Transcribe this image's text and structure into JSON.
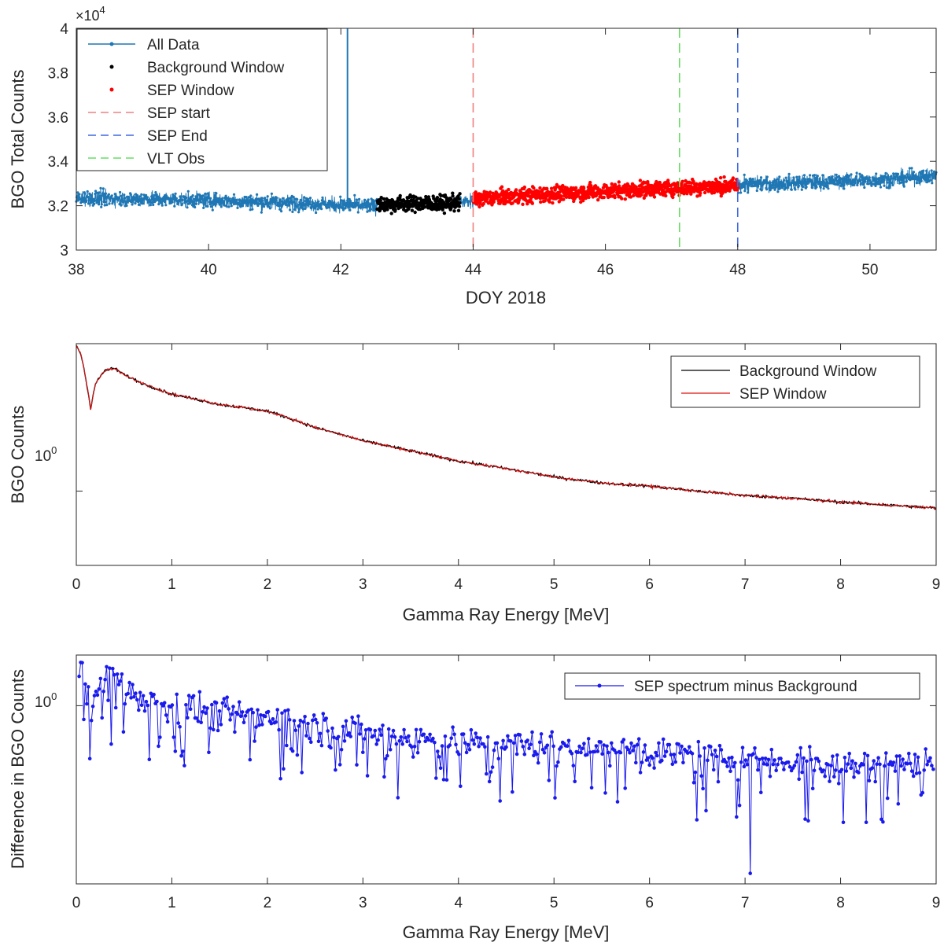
{
  "chart_data": [
    {
      "type": "scatter",
      "xlabel": "DOY 2018",
      "ylabel": "BGO Total Counts",
      "y_exponent_label": "×10",
      "y_exponent": "4",
      "xlim": [
        38,
        51
      ],
      "ylim": [
        30000,
        40000
      ],
      "x_ticks": [
        38,
        40,
        42,
        44,
        46,
        48,
        50
      ],
      "y_ticks": [
        30000,
        32000,
        34000,
        36000,
        38000,
        40000
      ],
      "y_tick_labels": [
        "3",
        "3.2",
        "3.4",
        "3.6",
        "3.8",
        "4"
      ],
      "series": [
        {
          "name": "All Data",
          "color": "#1f77b4",
          "x": [
            38,
            39,
            40,
            41,
            42,
            42.5,
            48,
            49,
            50,
            51
          ],
          "y": [
            32350,
            32300,
            32250,
            32150,
            32050,
            31950,
            32950,
            33050,
            33150,
            33350
          ]
        },
        {
          "name": "Background Window",
          "color": "#000000",
          "x": [
            42.55,
            43.0,
            43.5,
            43.8
          ],
          "y": [
            32050,
            32100,
            32100,
            32150
          ]
        },
        {
          "name": "SEP Window",
          "color": "#ff0000",
          "x": [
            44,
            45,
            46,
            47,
            48
          ],
          "y": [
            32300,
            32500,
            32650,
            32800,
            32900
          ]
        }
      ],
      "spike": {
        "x": 42.1,
        "y_from": 32050,
        "y_to": 40000
      },
      "vlines": [
        {
          "name": "SEP start",
          "x": 44.0,
          "color": "#f08080"
        },
        {
          "name": "SEP End",
          "x": 48.0,
          "color": "#4169e1"
        },
        {
          "name": "VLT Obs",
          "x": 47.12,
          "color": "#66dd66"
        }
      ],
      "legend": [
        "All Data",
        "Background Window",
        "SEP Window",
        "SEP start",
        "SEP End",
        "VLT Obs"
      ],
      "legend_position": "top-left"
    },
    {
      "type": "line",
      "xlabel": "Gamma Ray Energy [MeV]",
      "ylabel": "BGO Counts",
      "y_scale": "log",
      "xlim": [
        0,
        9
      ],
      "y_tick_label": "10",
      "y_tick_exponent": "0",
      "x_ticks": [
        0,
        1,
        2,
        3,
        4,
        5,
        6,
        7,
        8,
        9
      ],
      "series": [
        {
          "name": "Background Window",
          "color": "#000000",
          "x": [
            0,
            0.05,
            0.1,
            0.15,
            0.2,
            0.3,
            0.4,
            0.5,
            0.7,
            1,
            1.5,
            2,
            2.5,
            3,
            3.5,
            4,
            4.5,
            5,
            5.5,
            6,
            6.5,
            7,
            7.5,
            8,
            8.5,
            9
          ],
          "y": [
            5.5,
            4.9,
            3.7,
            2.6,
            3.5,
            4.1,
            4.2,
            3.9,
            3.5,
            3.1,
            2.75,
            2.55,
            2.1,
            1.8,
            1.6,
            1.42,
            1.3,
            1.18,
            1.1,
            1.06,
            1.0,
            0.95,
            0.92,
            0.88,
            0.85,
            0.82
          ]
        },
        {
          "name": "SEP Window",
          "color": "#dd1111",
          "x": [
            0,
            0.05,
            0.1,
            0.15,
            0.2,
            0.3,
            0.4,
            0.5,
            0.7,
            1,
            1.5,
            2,
            2.5,
            3,
            3.5,
            4,
            4.5,
            5,
            5.5,
            6,
            6.5,
            7,
            7.5,
            8,
            8.5,
            9
          ],
          "y": [
            5.5,
            4.9,
            3.7,
            2.6,
            3.5,
            4.1,
            4.2,
            3.9,
            3.5,
            3.1,
            2.75,
            2.55,
            2.1,
            1.8,
            1.6,
            1.42,
            1.3,
            1.18,
            1.1,
            1.06,
            1.0,
            0.95,
            0.92,
            0.88,
            0.85,
            0.82
          ]
        }
      ],
      "legend": [
        "Background Window",
        "SEP Window"
      ],
      "legend_position": "top-right"
    },
    {
      "type": "line",
      "xlabel": "Gamma Ray Energy [MeV]",
      "ylabel": "Difference in BGO Counts",
      "y_scale": "log",
      "xlim": [
        0,
        9
      ],
      "y_tick_label": "10",
      "y_tick_exponent": "0",
      "x_ticks": [
        0,
        1,
        2,
        3,
        4,
        5,
        6,
        7,
        8,
        9
      ],
      "series": [
        {
          "name": "SEP spectrum minus Background",
          "color": "#1a1aee",
          "x": [
            0.03,
            0.1,
            0.15,
            0.3,
            0.5,
            1,
            1.5,
            2,
            2.5,
            3,
            4,
            5,
            6,
            7,
            7.05,
            8,
            9
          ],
          "y": [
            1.5,
            1.25,
            0.75,
            1.25,
            1.15,
            1.0,
            0.95,
            0.9,
            0.83,
            0.78,
            0.72,
            0.7,
            0.65,
            0.62,
            0.22,
            0.6,
            0.6
          ]
        }
      ],
      "legend": [
        "SEP spectrum minus Background"
      ],
      "legend_position": "top-right"
    }
  ]
}
